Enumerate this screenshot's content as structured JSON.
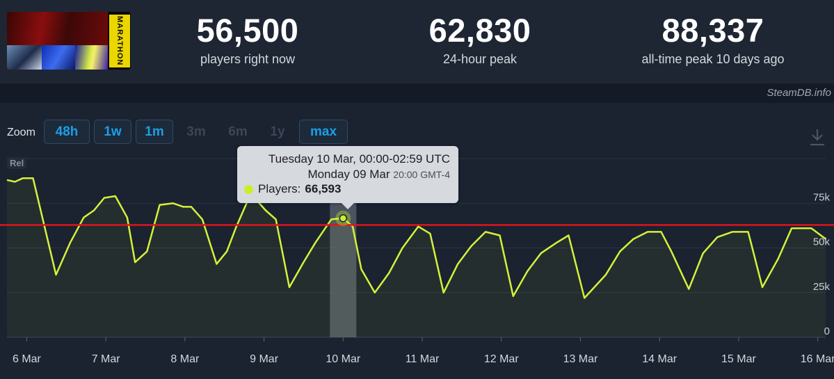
{
  "game": {
    "logo_text": "MARATHON"
  },
  "stats": [
    {
      "value": "56,500",
      "label": "players right now"
    },
    {
      "value": "62,830",
      "label": "24-hour peak"
    },
    {
      "value": "88,337",
      "label": "all-time peak 10 days ago"
    }
  ],
  "credit": "SteamDB.info",
  "zoom": {
    "label": "Zoom",
    "active": [
      "48h",
      "1w",
      "1m"
    ],
    "disabled": [
      "3m",
      "6m",
      "1y"
    ],
    "selected": "max"
  },
  "rel_label": "Rel",
  "tooltip": {
    "line1": "Tuesday 10 Mar, 00:00-02:59 UTC",
    "line2_date": "Monday 09 Mar",
    "line2_time": "20:00 GMT-4",
    "series_label": "Players:",
    "series_value": "66,593"
  },
  "colors": {
    "line": "#d4f23a",
    "reference": "#e0141a",
    "background": "#1b2230",
    "button_text": "#1c9ee8"
  },
  "chart_data": {
    "type": "line",
    "series": [
      {
        "name": "Players",
        "x": [
          5.75,
          5.85,
          5.95,
          6.08,
          6.37,
          6.55,
          6.72,
          6.85,
          6.98,
          7.12,
          7.27,
          7.37,
          7.52,
          7.68,
          7.85,
          7.98,
          8.08,
          8.22,
          8.4,
          8.53,
          8.65,
          8.8,
          8.9,
          9.02,
          9.15,
          9.32,
          9.5,
          9.65,
          9.85,
          10.0,
          10.12,
          10.23,
          10.4,
          10.58,
          10.75,
          10.95,
          11.1,
          11.27,
          11.45,
          11.62,
          11.8,
          11.98,
          12.15,
          12.33,
          12.5,
          12.7,
          12.85,
          13.05,
          13.32,
          13.5,
          13.67,
          13.85,
          14.02,
          14.15,
          14.37,
          14.55,
          14.73,
          14.92,
          15.12,
          15.3,
          15.5,
          15.67,
          15.92,
          16.1
        ],
        "y": [
          88000,
          87000,
          89000,
          89000,
          35000,
          53000,
          67000,
          71000,
          78000,
          79000,
          67000,
          42000,
          48000,
          74000,
          75000,
          73000,
          73000,
          66000,
          41000,
          48000,
          62000,
          77000,
          77000,
          71000,
          66000,
          28000,
          42000,
          53000,
          66000,
          66600,
          62000,
          38000,
          25000,
          36000,
          50000,
          62000,
          58000,
          25000,
          41000,
          51000,
          59000,
          57000,
          23000,
          37000,
          47000,
          53000,
          57000,
          22000,
          35000,
          48000,
          55000,
          59000,
          59000,
          48000,
          27000,
          47000,
          56000,
          59000,
          59000,
          28000,
          44000,
          61000,
          61000,
          55000
        ]
      }
    ],
    "reference_value": 62830,
    "x_tick_labels": [
      "6 Mar",
      "7 Mar",
      "8 Mar",
      "9 Mar",
      "10 Mar",
      "11 Mar",
      "12 Mar",
      "13 Mar",
      "14 Mar",
      "15 Mar",
      "16 Mar"
    ],
    "x_tick_values": [
      6,
      7,
      8,
      9,
      10,
      11,
      12,
      13,
      14,
      15,
      16
    ],
    "y_tick_labels": [
      "0",
      "25k",
      "50k",
      "75k"
    ],
    "y_tick_values": [
      0,
      25000,
      50000,
      75000
    ],
    "xlim": [
      5.75,
      16.1
    ],
    "ylim": [
      0,
      100000
    ],
    "highlight_x": 10.0,
    "grid": true
  }
}
